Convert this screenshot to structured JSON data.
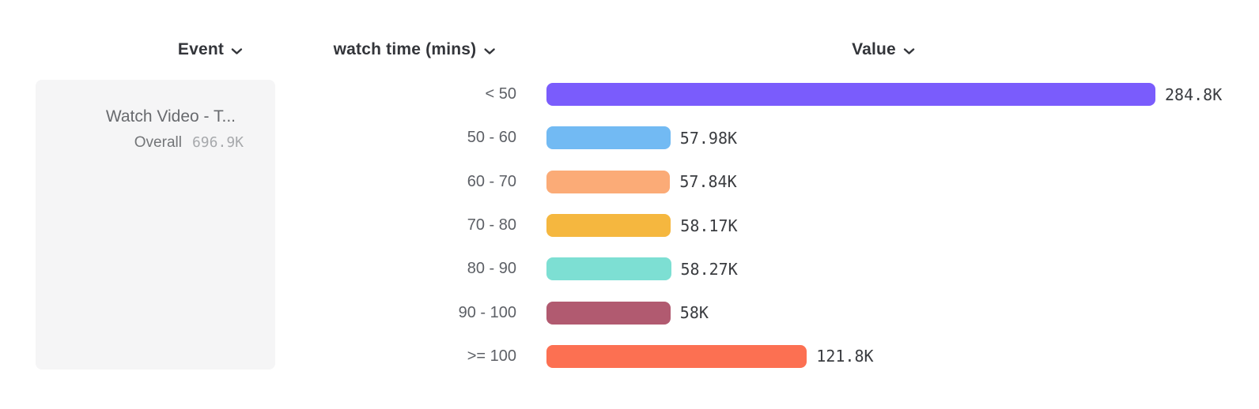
{
  "header": {
    "columns": [
      {
        "id": "event",
        "label": "Event"
      },
      {
        "id": "breakdown",
        "label": "watch time (mins)"
      },
      {
        "id": "value",
        "label": "Value"
      }
    ]
  },
  "event_card": {
    "name": "Watch Video - T...",
    "overall_label": "Overall",
    "overall_value": "696.9K"
  },
  "chart_data": {
    "type": "bar",
    "orientation": "horizontal",
    "title": "",
    "xlabel": "Value",
    "ylabel": "watch time (mins)",
    "categories": [
      "< 50",
      "50 - 60",
      "60 - 70",
      "70 - 80",
      "80 - 90",
      "90 - 100",
      ">= 100"
    ],
    "values": [
      284800,
      57980,
      57840,
      58170,
      58270,
      58000,
      121800
    ],
    "value_labels": [
      "284.8K",
      "57.98K",
      "57.84K",
      "58.17K",
      "58.27K",
      "58K",
      "121.8K"
    ],
    "bar_colors": [
      "#7A5CFC",
      "#72BAF3",
      "#FBAB77",
      "#F5B73F",
      "#7DDFD3",
      "#B15A70",
      "#FC7052"
    ],
    "max_value": 284800,
    "grid": false,
    "legend": false
  },
  "colors": {
    "background": "#ffffff",
    "card_background": "#f5f5f6",
    "header_text": "#33353a",
    "category_text": "#5d6066",
    "value_text": "#3a3c40"
  }
}
